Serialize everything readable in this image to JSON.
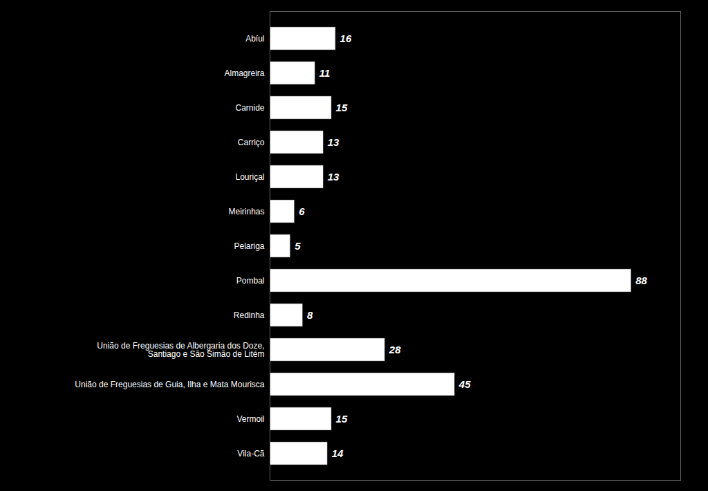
{
  "chart_data": {
    "type": "bar",
    "orientation": "horizontal",
    "categories": [
      "Abíul",
      "Almagreira",
      "Carnide",
      "Carriço",
      "Louriçal",
      "Meirinhas",
      "Pelariga",
      "Pombal",
      "Redinha",
      "União de Freguesias de Albergaria dos Doze,\nSantiago e São Simão de Litém",
      "União de Freguesias de Guia, Ilha e Mata Mourisca",
      "Vermoil",
      "Vila-Cã"
    ],
    "values": [
      16,
      11,
      15,
      13,
      13,
      6,
      5,
      88,
      8,
      28,
      45,
      15,
      14
    ],
    "color": "#ffffff",
    "xlim": [
      0,
      100
    ],
    "data_labels": true,
    "tick_labels": "y",
    "grid": false
  }
}
